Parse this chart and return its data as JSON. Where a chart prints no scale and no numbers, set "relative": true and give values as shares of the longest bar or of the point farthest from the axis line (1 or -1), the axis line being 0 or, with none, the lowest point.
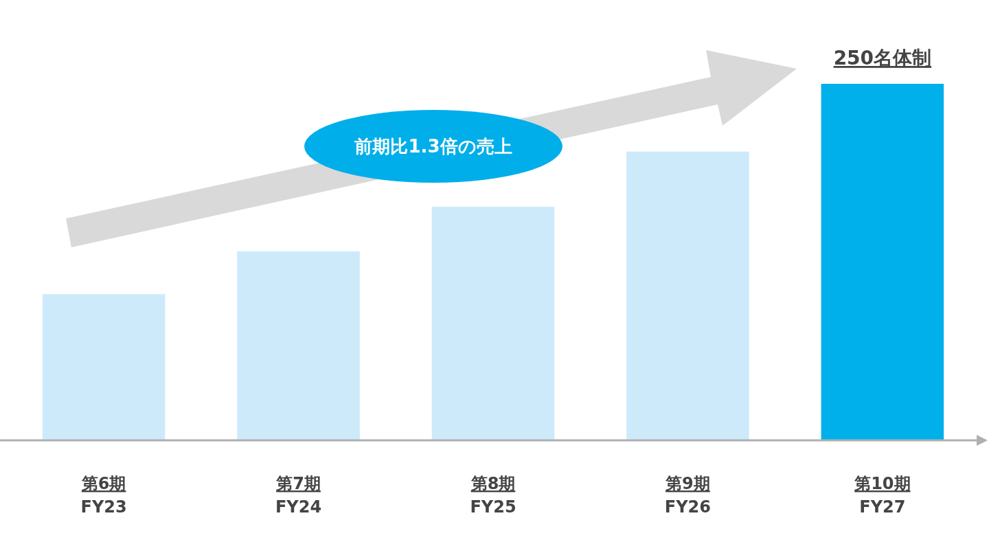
{
  "chart_data": {
    "type": "bar",
    "relative": true,
    "categories": [
      "第6期\nFY23",
      "第7期\nFY24",
      "第8期\nFY25",
      "第9期\nFY26",
      "第10期\nFY27"
    ],
    "values": [
      0.41,
      0.53,
      0.655,
      0.81,
      1
    ],
    "colors": [
      "#cdeafb",
      "#cdeafb",
      "#cdeafb",
      "#cdeafb",
      "#00b0ea"
    ],
    "annotations": [
      {
        "text": "250名体制",
        "x": "第10期\nFY27",
        "y": 1
      },
      "前期比1.3倍の売上"
    ]
  }
}
